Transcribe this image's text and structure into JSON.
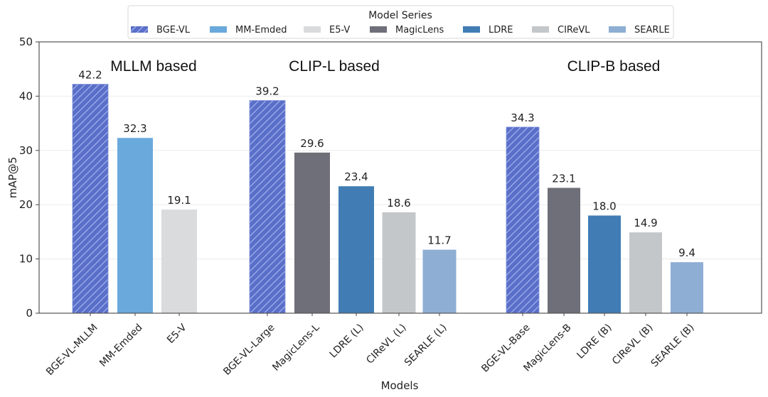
{
  "chart_data": {
    "type": "bar",
    "title": "",
    "xlabel": "Models",
    "ylabel": "mAP@5",
    "ylim": [
      0,
      50
    ],
    "yticks": [
      0,
      10,
      20,
      30,
      40,
      50
    ],
    "grid": "horizontal",
    "legend": {
      "title": "Model Series",
      "placement": "top-center",
      "entries": [
        {
          "name": "BGE-VL",
          "color": "#5a6fc9",
          "hatch": true
        },
        {
          "name": "MM-Emded",
          "color": "#6aa9dc",
          "hatch": false
        },
        {
          "name": "E5-V",
          "color": "#dadbdc",
          "hatch": false
        },
        {
          "name": "MagicLens",
          "color": "#6f6f79",
          "hatch": false
        },
        {
          "name": "LDRE",
          "color": "#417db4",
          "hatch": false
        },
        {
          "name": "CIReVL",
          "color": "#c4c7ca",
          "hatch": false
        },
        {
          "name": "SEARLE",
          "color": "#8eaed4",
          "hatch": false
        }
      ]
    },
    "groups": [
      {
        "label": "MLLM based"
      },
      {
        "label": "CLIP-L based"
      },
      {
        "label": "CLIP-B based"
      }
    ],
    "bars": [
      {
        "category": "BGE-VL-MLLM",
        "value": 42.2,
        "label": "42.2",
        "series": "BGE-VL",
        "group": 0
      },
      {
        "category": "MM-Emded",
        "value": 32.3,
        "label": "32.3",
        "series": "MM-Emded",
        "group": 0
      },
      {
        "category": "E5-V",
        "value": 19.1,
        "label": "19.1",
        "series": "E5-V",
        "group": 0
      },
      {
        "category": "BGE-VL-Large",
        "value": 39.2,
        "label": "39.2",
        "series": "BGE-VL",
        "group": 1
      },
      {
        "category": "MagicLens-L",
        "value": 29.6,
        "label": "29.6",
        "series": "MagicLens",
        "group": 1
      },
      {
        "category": "LDRE (L)",
        "value": 23.4,
        "label": "23.4",
        "series": "LDRE",
        "group": 1
      },
      {
        "category": "CIReVL (L)",
        "value": 18.6,
        "label": "18.6",
        "series": "CIReVL",
        "group": 1
      },
      {
        "category": "SEARLE (L)",
        "value": 11.7,
        "label": "11.7",
        "series": "SEARLE",
        "group": 1
      },
      {
        "category": "BGE-VL-Base",
        "value": 34.3,
        "label": "34.3",
        "series": "BGE-VL",
        "group": 2
      },
      {
        "category": "MagicLens-B",
        "value": 23.1,
        "label": "23.1",
        "series": "MagicLens",
        "group": 2
      },
      {
        "category": "LDRE (B)",
        "value": 18.0,
        "label": "18.0",
        "series": "LDRE",
        "group": 2
      },
      {
        "category": "CIReVL (B)",
        "value": 14.9,
        "label": "14.9",
        "series": "CIReVL",
        "group": 2
      },
      {
        "category": "SEARLE (B)",
        "value": 9.4,
        "label": "9.4",
        "series": "SEARLE",
        "group": 2
      }
    ]
  }
}
